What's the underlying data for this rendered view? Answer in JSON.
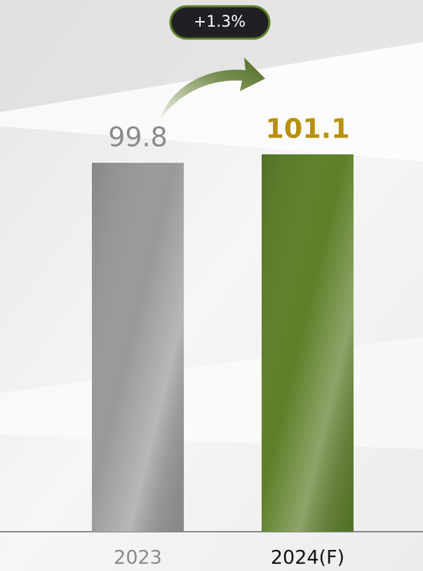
{
  "chart_data": {
    "type": "bar",
    "categories": [
      "2023",
      "2024(F)"
    ],
    "values": [
      99.8,
      101.1
    ],
    "colors": [
      "#999999",
      "#5d7f28"
    ],
    "label_colors": [
      "#8a8a8a",
      "#b8900a"
    ],
    "category_colors": [
      "#8a8a8a",
      "#111111"
    ],
    "ylim": [
      43,
      102
    ],
    "annotation": "+1.3%"
  }
}
